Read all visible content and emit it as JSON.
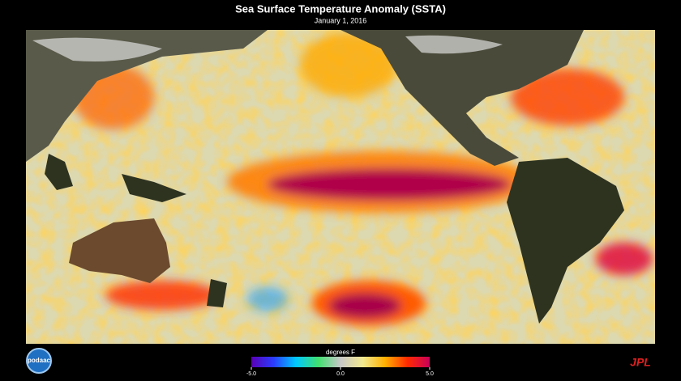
{
  "header": {
    "title": "Sea Surface Temperature Anomaly (SSTA)",
    "subtitle": "January 1, 2016"
  },
  "colorbar": {
    "label": "degrees F",
    "range": [
      -5,
      5
    ],
    "ticks": [
      {
        "value": -5,
        "label": "-5.0"
      },
      {
        "value": 0,
        "label": "0.0"
      },
      {
        "value": 5,
        "label": "5.0"
      }
    ],
    "colors": [
      "#5a00b4",
      "#2a3cff",
      "#00c8ff",
      "#40e070",
      "#c8c8c8",
      "#f0e890",
      "#ffb000",
      "#ff2a00",
      "#c8005a"
    ]
  },
  "logos": {
    "left": "podaac",
    "right": "JPL"
  }
}
